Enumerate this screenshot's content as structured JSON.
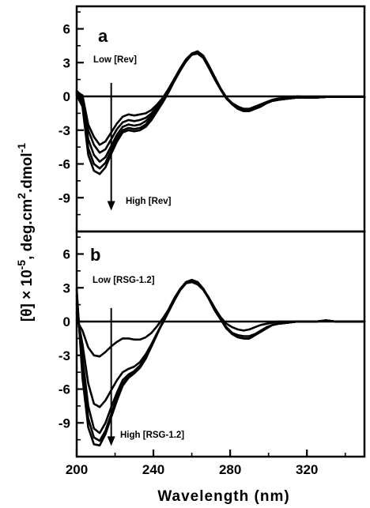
{
  "chart_data": [
    {
      "type": "line",
      "panel_label": "a",
      "xlabel": "",
      "ylabel": "[θ] × 10^-5, deg.cm^2.dmol^-1",
      "xlim": [
        200,
        350
      ],
      "ylim": [
        -12,
        8
      ],
      "y_ticks": [
        "6",
        "3",
        "0",
        "-3",
        "-6",
        "-9"
      ],
      "grid": false,
      "annotations": {
        "arrow_x": 218,
        "arrow_from_y": 1.2,
        "arrow_to_y": -10.0,
        "low_label": "Low [Rev]",
        "high_label": "High [Rev]"
      },
      "series": [
        {
          "x": [
            200,
            203,
            206,
            209,
            212,
            215,
            218,
            221,
            224,
            227,
            230,
            233,
            236,
            239,
            242,
            245,
            248,
            251,
            254,
            257,
            260,
            263,
            266,
            269,
            272,
            275,
            278,
            281,
            284,
            287,
            290,
            293,
            296,
            299,
            302,
            305,
            310,
            315,
            320,
            325,
            330,
            335,
            340,
            345,
            350
          ],
          "y": [
            0.4,
            0.1,
            -2.5,
            -3.6,
            -4.3,
            -4.0,
            -3.2,
            -2.4,
            -1.8,
            -1.6,
            -1.7,
            -1.6,
            -1.5,
            -1.2,
            -0.7,
            -0.1,
            0.7,
            1.6,
            2.5,
            3.3,
            3.8,
            3.9,
            3.5,
            2.6,
            1.6,
            0.7,
            -0.1,
            -0.6,
            -0.9,
            -1.1,
            -1.1,
            -0.9,
            -0.7,
            -0.5,
            -0.3,
            -0.2,
            -0.1,
            0.0,
            -0.05,
            -0.1,
            -0.05,
            -0.05,
            -0.05,
            -0.05,
            -0.05
          ]
        },
        {
          "x": [
            200,
            203,
            206,
            209,
            212,
            215,
            218,
            221,
            224,
            227,
            230,
            233,
            236,
            239,
            242,
            245,
            248,
            251,
            254,
            257,
            260,
            263,
            266,
            269,
            272,
            275,
            278,
            281,
            284,
            287,
            290,
            293,
            296,
            299,
            302,
            305,
            310,
            315,
            320,
            325,
            330,
            335,
            340,
            345,
            350
          ],
          "y": [
            0.5,
            0.0,
            -3.0,
            -4.3,
            -5.0,
            -4.7,
            -3.8,
            -2.9,
            -2.3,
            -2.1,
            -2.2,
            -2.1,
            -1.9,
            -1.5,
            -0.9,
            -0.2,
            0.6,
            1.5,
            2.4,
            3.2,
            3.7,
            3.8,
            3.4,
            2.5,
            1.5,
            0.6,
            -0.2,
            -0.7,
            -1.0,
            -1.2,
            -1.2,
            -1.0,
            -0.8,
            -0.6,
            -0.4,
            -0.3,
            -0.2,
            -0.1,
            -0.1,
            -0.1,
            -0.05,
            -0.05,
            -0.05,
            -0.05,
            -0.05
          ]
        },
        {
          "x": [
            200,
            203,
            206,
            209,
            212,
            215,
            218,
            221,
            224,
            227,
            230,
            233,
            236,
            239,
            242,
            245,
            248,
            251,
            254,
            257,
            260,
            263,
            266,
            269,
            272,
            275,
            278,
            281,
            284,
            287,
            290,
            293,
            296,
            299,
            302,
            305,
            310,
            315,
            320,
            325,
            330,
            335,
            340,
            345,
            350
          ],
          "y": [
            0.3,
            -0.3,
            -3.8,
            -5.2,
            -5.8,
            -5.4,
            -4.4,
            -3.4,
            -2.7,
            -2.5,
            -2.6,
            -2.5,
            -2.2,
            -1.7,
            -1.0,
            -0.3,
            0.5,
            1.4,
            2.3,
            3.1,
            3.7,
            3.9,
            3.5,
            2.6,
            1.6,
            0.7,
            -0.1,
            -0.7,
            -1.1,
            -1.3,
            -1.3,
            -1.1,
            -0.9,
            -0.6,
            -0.4,
            -0.3,
            -0.2,
            -0.1,
            -0.1,
            -0.1,
            -0.05,
            -0.05,
            -0.05,
            -0.05,
            -0.05
          ]
        },
        {
          "x": [
            200,
            203,
            206,
            209,
            212,
            215,
            218,
            221,
            224,
            227,
            230,
            233,
            236,
            239,
            242,
            245,
            248,
            251,
            254,
            257,
            260,
            263,
            266,
            269,
            272,
            275,
            278,
            281,
            284,
            287,
            290,
            293,
            296,
            299,
            302,
            305,
            310,
            315,
            320,
            325,
            330,
            335,
            340,
            345,
            350
          ],
          "y": [
            0.2,
            -0.6,
            -4.6,
            -6.0,
            -6.4,
            -5.9,
            -4.8,
            -3.7,
            -3.0,
            -2.8,
            -2.9,
            -2.8,
            -2.5,
            -1.9,
            -1.2,
            -0.4,
            0.5,
            1.4,
            2.3,
            3.2,
            3.8,
            4.0,
            3.6,
            2.7,
            1.7,
            0.7,
            -0.1,
            -0.7,
            -1.1,
            -1.3,
            -1.3,
            -1.1,
            -0.9,
            -0.6,
            -0.4,
            -0.3,
            -0.2,
            -0.1,
            -0.1,
            -0.1,
            -0.05,
            -0.05,
            -0.05,
            -0.05,
            -0.05
          ]
        },
        {
          "x": [
            200,
            203,
            206,
            209,
            212,
            215,
            218,
            221,
            224,
            227,
            230,
            233,
            236,
            239,
            242,
            245,
            248,
            251,
            254,
            257,
            260,
            263,
            266,
            269,
            272,
            275,
            278,
            281,
            284,
            287,
            290,
            293,
            296,
            299,
            302,
            305,
            310,
            315,
            320,
            325,
            330,
            335,
            340,
            345,
            350
          ],
          "y": [
            0.1,
            -0.9,
            -5.2,
            -6.6,
            -6.9,
            -6.3,
            -5.1,
            -4.0,
            -3.2,
            -3.0,
            -3.1,
            -3.0,
            -2.7,
            -2.1,
            -1.3,
            -0.5,
            0.4,
            1.4,
            2.3,
            3.2,
            3.8,
            4.0,
            3.6,
            2.7,
            1.7,
            0.7,
            -0.1,
            -0.7,
            -1.1,
            -1.3,
            -1.3,
            -1.1,
            -0.9,
            -0.6,
            -0.4,
            -0.3,
            -0.2,
            -0.1,
            -0.1,
            -0.1,
            -0.05,
            -0.05,
            -0.05,
            -0.05,
            -0.05
          ]
        }
      ]
    },
    {
      "type": "line",
      "panel_label": "b",
      "xlabel": "Wavelength (nm)",
      "ylabel": "[θ] × 10^-5, deg.cm^2.dmol^-1",
      "xlim": [
        200,
        350
      ],
      "ylim": [
        -12,
        8
      ],
      "x_ticks": [
        "200",
        "240",
        "280",
        "320"
      ],
      "y_ticks": [
        "6",
        "3",
        "0",
        "-3",
        "-6",
        "-9"
      ],
      "grid": false,
      "annotations": {
        "arrow_x": 218,
        "arrow_from_y": 1.2,
        "arrow_to_y": -10.9,
        "low_label": "Low [RSG-1.2]",
        "high_label": "High [RSG-1.2]"
      },
      "series": [
        {
          "x": [
            200,
            203,
            206,
            209,
            212,
            215,
            218,
            221,
            224,
            227,
            230,
            233,
            236,
            239,
            242,
            245,
            248,
            251,
            254,
            257,
            260,
            263,
            266,
            269,
            272,
            275,
            278,
            281,
            284,
            287,
            290,
            293,
            296,
            299,
            302,
            305,
            310,
            315,
            320,
            325,
            330,
            335,
            340,
            345,
            350
          ],
          "y": [
            0.1,
            -0.8,
            -2.3,
            -3.0,
            -3.1,
            -2.7,
            -2.2,
            -1.8,
            -1.5,
            -1.5,
            -1.6,
            -1.6,
            -1.4,
            -1.0,
            -0.4,
            0.3,
            1.1,
            2.0,
            2.8,
            3.4,
            3.6,
            3.4,
            2.9,
            2.1,
            1.2,
            0.4,
            -0.2,
            -0.5,
            -0.7,
            -0.8,
            -0.7,
            -0.5,
            -0.3,
            -0.2,
            -0.1,
            0.0,
            0.0,
            0.0,
            0.0,
            0.0,
            0.1,
            0.0,
            0.0,
            0.0,
            0.0
          ]
        },
        {
          "x": [
            200,
            203,
            206,
            209,
            212,
            215,
            218,
            221,
            224,
            227,
            230,
            233,
            236,
            239,
            242,
            245,
            248,
            251,
            254,
            257,
            260,
            263,
            266,
            269,
            272,
            275,
            278,
            281,
            284,
            287,
            290,
            293,
            296,
            299,
            302,
            305,
            310,
            315,
            320,
            325,
            330,
            335,
            340,
            345,
            350
          ],
          "y": [
            0.8,
            -2.0,
            -5.5,
            -7.3,
            -7.6,
            -7.0,
            -6.1,
            -5.2,
            -4.5,
            -4.2,
            -4.0,
            -3.6,
            -2.9,
            -2.0,
            -1.0,
            -0.1,
            0.9,
            1.9,
            2.8,
            3.4,
            3.5,
            3.3,
            2.8,
            2.0,
            1.0,
            0.2,
            -0.5,
            -1.0,
            -1.2,
            -1.3,
            -1.3,
            -1.1,
            -0.8,
            -0.5,
            -0.3,
            -0.2,
            -0.1,
            0.0,
            0.0,
            0.0,
            0.1,
            0.0,
            0.0,
            0.0,
            0.0
          ]
        },
        {
          "x": [
            200,
            203,
            206,
            209,
            212,
            215,
            218,
            221,
            224,
            227,
            230,
            233,
            236,
            239,
            242,
            245,
            248,
            251,
            254,
            257,
            260,
            263,
            266,
            269,
            272,
            275,
            278,
            281,
            284,
            287,
            290,
            293,
            296,
            299,
            302,
            305,
            310,
            315,
            320,
            325,
            330,
            335,
            340,
            345,
            350
          ],
          "y": [
            1.6,
            -3.2,
            -7.5,
            -9.5,
            -9.9,
            -9.0,
            -7.6,
            -6.3,
            -5.2,
            -4.7,
            -4.4,
            -3.9,
            -3.1,
            -2.1,
            -1.0,
            0.0,
            1.1,
            2.1,
            2.9,
            3.5,
            3.7,
            3.5,
            2.9,
            2.0,
            1.0,
            0.2,
            -0.6,
            -1.1,
            -1.4,
            -1.5,
            -1.5,
            -1.2,
            -0.9,
            -0.6,
            -0.3,
            -0.2,
            -0.1,
            0.0,
            0.0,
            0.0,
            0.1,
            0.0,
            0.0,
            0.0,
            0.0
          ]
        },
        {
          "x": [
            200,
            203,
            206,
            209,
            212,
            215,
            218,
            221,
            224,
            227,
            230,
            233,
            236,
            239,
            242,
            245,
            248,
            251,
            254,
            257,
            260,
            263,
            266,
            269,
            272,
            275,
            278,
            281,
            284,
            287,
            290,
            293,
            296,
            299,
            302,
            305,
            310,
            315,
            320,
            325,
            330,
            335,
            340,
            345,
            350
          ],
          "y": [
            2.3,
            -4.2,
            -8.6,
            -10.3,
            -10.6,
            -9.7,
            -8.2,
            -6.7,
            -5.5,
            -4.9,
            -4.5,
            -4.0,
            -3.2,
            -2.2,
            -1.1,
            0.0,
            1.1,
            2.1,
            2.9,
            3.5,
            3.7,
            3.5,
            2.9,
            2.0,
            1.0,
            0.2,
            -0.6,
            -1.1,
            -1.4,
            -1.5,
            -1.5,
            -1.2,
            -0.9,
            -0.6,
            -0.3,
            -0.2,
            -0.1,
            0.0,
            0.0,
            0.0,
            0.1,
            0.0,
            0.0,
            0.0,
            0.0
          ]
        },
        {
          "x": [
            200,
            203,
            206,
            209,
            212,
            215,
            218,
            221,
            224,
            227,
            230,
            233,
            236,
            239,
            242,
            245,
            248,
            251,
            254,
            257,
            260,
            263,
            266,
            269,
            272,
            275,
            278,
            281,
            284,
            287,
            290,
            293,
            296,
            299,
            302,
            305,
            310,
            315,
            320,
            325,
            330,
            335,
            340,
            345,
            350
          ],
          "y": [
            2.9,
            -5.0,
            -9.4,
            -10.9,
            -11.0,
            -10.0,
            -8.5,
            -7.0,
            -5.7,
            -5.0,
            -4.6,
            -4.1,
            -3.3,
            -2.2,
            -1.1,
            0.0,
            1.1,
            2.1,
            2.9,
            3.5,
            3.7,
            3.5,
            2.9,
            2.0,
            1.0,
            0.2,
            -0.6,
            -1.1,
            -1.4,
            -1.5,
            -1.5,
            -1.2,
            -0.9,
            -0.6,
            -0.3,
            -0.2,
            -0.1,
            0.0,
            0.0,
            0.0,
            0.1,
            0.0,
            0.0,
            0.0,
            0.0
          ]
        }
      ]
    }
  ]
}
